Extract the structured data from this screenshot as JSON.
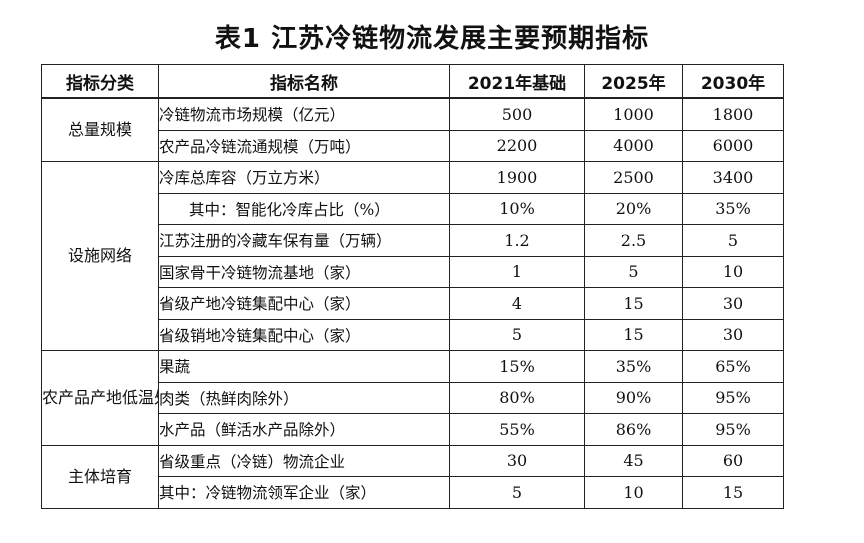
{
  "title": "表1  江苏冷链物流发展主要预期指标",
  "headers": {
    "category": "指标分类",
    "name": "指标名称",
    "y2021": "2021年基础",
    "y2025": "2025年",
    "y2030": "2030年"
  },
  "categories": {
    "scale": "总量规模",
    "network": "设施网络",
    "processing": "农产品产地低温处理率",
    "entity": "主体培育"
  },
  "rows": [
    {
      "name": "冷链物流市场规模（亿元）",
      "y2021": "500",
      "y2025": "1000",
      "y2030": "1800"
    },
    {
      "name": "农产品冷链流通规模（万吨）",
      "y2021": "2200",
      "y2025": "4000",
      "y2030": "6000"
    },
    {
      "name": "冷库总库容（万立方米）",
      "y2021": "1900",
      "y2025": "2500",
      "y2030": "3400"
    },
    {
      "name": "其中：智能化冷库占比（%）",
      "y2021": "10%",
      "y2025": "20%",
      "y2030": "35%"
    },
    {
      "name": "江苏注册的冷藏车保有量（万辆）",
      "y2021": "1.2",
      "y2025": "2.5",
      "y2030": "5"
    },
    {
      "name": "国家骨干冷链物流基地（家）",
      "y2021": "1",
      "y2025": "5",
      "y2030": "10"
    },
    {
      "name": "省级产地冷链集配中心（家）",
      "y2021": "4",
      "y2025": "15",
      "y2030": "30"
    },
    {
      "name": "省级销地冷链集配中心（家）",
      "y2021": "5",
      "y2025": "15",
      "y2030": "30"
    },
    {
      "name": "果蔬",
      "y2021": "15%",
      "y2025": "35%",
      "y2030": "65%"
    },
    {
      "name": "肉类（热鲜肉除外）",
      "y2021": "80%",
      "y2025": "90%",
      "y2030": "95%"
    },
    {
      "name": "水产品（鲜活水产品除外）",
      "y2021": "55%",
      "y2025": "86%",
      "y2030": "95%"
    },
    {
      "name": "省级重点（冷链）物流企业",
      "y2021": "30",
      "y2025": "45",
      "y2030": "60"
    },
    {
      "name": "其中：冷链物流领军企业（家）",
      "y2021": "5",
      "y2025": "10",
      "y2030": "15"
    }
  ]
}
